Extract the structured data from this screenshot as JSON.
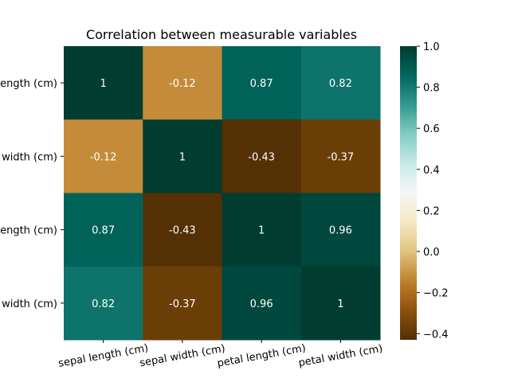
{
  "chart_data": {
    "type": "heatmap",
    "title": "Correlation between measurable variables",
    "x_labels": [
      "sepal length (cm)",
      "sepal width (cm)",
      "petal length (cm)",
      "petal width (cm)"
    ],
    "y_labels": [
      "sepal length (cm)",
      "sepal width (cm)",
      "petal length (cm)",
      "petal width (cm)"
    ],
    "y_labels_visible": [
      "ength (cm)",
      "width (cm)",
      "ength (cm)",
      "width (cm)"
    ],
    "matrix": [
      [
        1,
        -0.12,
        0.87,
        0.82
      ],
      [
        -0.12,
        1,
        -0.43,
        -0.37
      ],
      [
        0.87,
        -0.43,
        1,
        0.96
      ],
      [
        0.82,
        -0.37,
        0.96,
        1
      ]
    ],
    "annotations": [
      [
        "1",
        "-0.12",
        "0.87",
        "0.82"
      ],
      [
        "-0.12",
        "1",
        "-0.43",
        "-0.37"
      ],
      [
        "0.87",
        "-0.43",
        "1",
        "0.96"
      ],
      [
        "0.82",
        "-0.37",
        "0.96",
        "1"
      ]
    ],
    "colormap": "BrBG",
    "vmin": -0.43,
    "vmax": 1.0,
    "colorbar_ticks": [
      1.0,
      0.8,
      0.6,
      0.4,
      0.2,
      0.0,
      -0.2,
      -0.4
    ],
    "colorbar_tick_labels": [
      "1.0",
      "0.8",
      "0.6",
      "0.4",
      "0.2",
      "0.0",
      "−0.2",
      "−0.4"
    ],
    "xlabel": "",
    "ylabel": ""
  }
}
